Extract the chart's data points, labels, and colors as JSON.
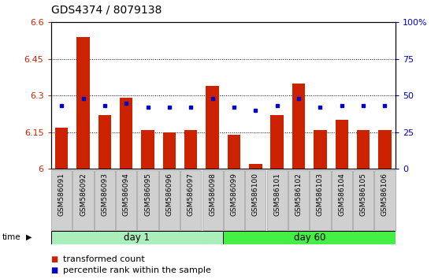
{
  "title": "GDS4374 / 8079138",
  "samples": [
    "GSM586091",
    "GSM586092",
    "GSM586093",
    "GSM586094",
    "GSM586095",
    "GSM586096",
    "GSM586097",
    "GSM586098",
    "GSM586099",
    "GSM586100",
    "GSM586101",
    "GSM586102",
    "GSM586103",
    "GSM586104",
    "GSM586105",
    "GSM586106"
  ],
  "bar_values": [
    6.17,
    6.54,
    6.22,
    6.29,
    6.16,
    6.15,
    6.16,
    6.34,
    6.14,
    6.02,
    6.22,
    6.35,
    6.16,
    6.2,
    6.16,
    6.16
  ],
  "dot_values": [
    43,
    48,
    43,
    45,
    42,
    42,
    42,
    48,
    42,
    40,
    43,
    48,
    42,
    43,
    43,
    43
  ],
  "ylim_left": [
    6.0,
    6.6
  ],
  "ylim_right": [
    0,
    100
  ],
  "yticks_left": [
    6.0,
    6.15,
    6.3,
    6.45,
    6.6
  ],
  "ytick_labels_left": [
    "6",
    "6.15",
    "6.3",
    "6.45",
    "6.6"
  ],
  "yticks_right": [
    0,
    25,
    50,
    75,
    100
  ],
  "ytick_labels_right": [
    "0",
    "25",
    "50",
    "75",
    "100%"
  ],
  "bar_color": "#cc2200",
  "dot_color": "#0000cc",
  "bar_width": 0.6,
  "grid_lines": [
    6.15,
    6.3,
    6.45
  ],
  "tick_label_bg": "#d0d0d0",
  "day1_color": "#aaeebb",
  "day60_color": "#44ee44",
  "legend_items": [
    {
      "color": "#cc2200",
      "label": "transformed count"
    },
    {
      "color": "#0000cc",
      "label": "percentile rank within the sample"
    }
  ],
  "title_fontsize": 10,
  "xlabel_fontsize": 6.5,
  "ylabel_fontsize": 8,
  "legend_fontsize": 8
}
